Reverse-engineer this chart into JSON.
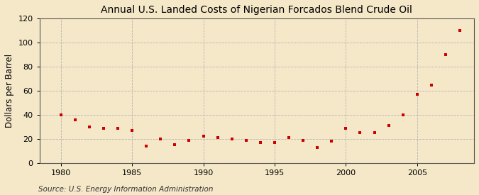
{
  "title": "Annual U.S. Landed Costs of Nigerian Forcados Blend Crude Oil",
  "ylabel": "Dollars per Barrel",
  "source": "Source: U.S. Energy Information Administration",
  "background_color": "#f5e8c8",
  "plot_background_color": "#f5e8c8",
  "marker_color": "#cc0000",
  "grid_color": "#b0b0b0",
  "years": [
    1980,
    1981,
    1982,
    1983,
    1984,
    1985,
    1986,
    1987,
    1988,
    1989,
    1990,
    1991,
    1992,
    1993,
    1994,
    1995,
    1996,
    1997,
    1998,
    1999,
    2000,
    2001,
    2002,
    2003,
    2004,
    2005,
    2006,
    2007,
    2008
  ],
  "values": [
    40,
    36,
    30,
    29,
    29,
    27,
    14,
    20,
    15,
    19,
    22,
    21,
    20,
    19,
    17,
    17,
    21,
    19,
    13,
    18,
    29,
    25,
    25,
    31,
    40,
    57,
    65,
    90,
    110
  ],
  "xlim": [
    1978.5,
    2009
  ],
  "ylim": [
    0,
    120
  ],
  "yticks": [
    0,
    20,
    40,
    60,
    80,
    100,
    120
  ],
  "xticks": [
    1980,
    1985,
    1990,
    1995,
    2000,
    2005
  ],
  "title_fontsize": 10,
  "label_fontsize": 8.5,
  "tick_fontsize": 8,
  "source_fontsize": 7.5
}
